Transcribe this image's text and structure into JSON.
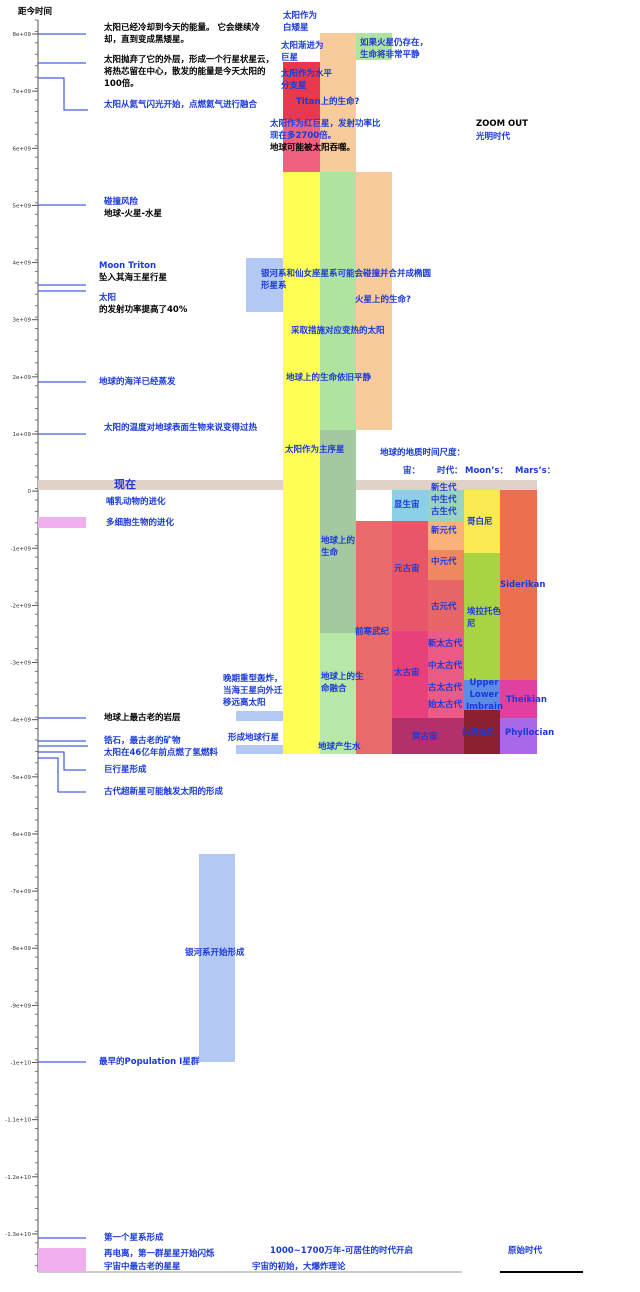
{
  "axis": {
    "title": "距今时间",
    "ticks": [
      "8e+09",
      "7e+09",
      "6e+09",
      "5e+09",
      "4e+09",
      "3e+09",
      "2e+09",
      "1e+09",
      "0",
      "-1e+09",
      "-2e+09",
      "-3e+09",
      "-4e+09",
      "-5e+09",
      "-6e+09",
      "-7e+09",
      "-8e+09",
      "-9e+09",
      "-1e+10",
      "-1.1e+10",
      "-1.2e+10",
      "-1.3e+10"
    ]
  },
  "future": {
    "sun_cooling": "太阳已经冷却到今天的能量。 它会继续冷却，直到变成黑矮星。",
    "nebula": "太阳抛弃了它的外层，形成一个行星状星云，将热芯留在中心，散发的能量是今天太阳的100倍。",
    "helium": "太阳从氦气闪光开始，点燃氦气进行融合",
    "collision_title": "碰撞风险",
    "collision_bodies": "地球-火星-水星",
    "triton_title": "Moon Triton",
    "triton_text": "坠入其海王星行星",
    "sun_title": "太阳",
    "sun_text": "的发射功率提高了40%",
    "oceans": "地球的海洋已经蒸发",
    "too_hot": "太阳的温度对地球表面生物来说变得过热"
  },
  "past": {
    "now": "现在",
    "mammals": "哺乳动物的进化",
    "multicellular": "多细胞生物的进化",
    "oldest_rock": "地球上最古老的岩层",
    "zircon": "锆石，最古老的矿物",
    "hydrogen": "太阳在46亿年前点燃了氢燃料",
    "giants": "巨行星形成",
    "supernova": "古代超新星可能触发太阳的形成",
    "galaxy_forms": "银河系开始形成",
    "population": "最早的Population I星群",
    "first_galaxy": "第一个星系形成",
    "reionization": "再电离，第一群星星开始闪烁",
    "oldest_stars": "宇宙中最古老的星星",
    "habitable": "1000~1700万年-可居住的时代开启",
    "big_bang": "宇宙的初始，大爆炸理论",
    "primordial": "原始时代"
  },
  "center": {
    "white_dwarf": "太阳作为白矮星",
    "giant": "太阳渐进为巨星",
    "horizontal": "太阳作为水平分支星",
    "titan": "Titan上的生命?",
    "red_giant": "太阳作为红巨星，发射功率比现在多2700倍。",
    "engulfed": "地球可能被太阳吞噬。",
    "mars_calm": "如果火星仍存在，生命将非常平静",
    "zoom": "ZOOM OUT",
    "bright_era": "光明时代",
    "andromeda": "银河系和仙女座星系可能会碰撞并合并成椭圆形星系",
    "mars_life": "火星上的生命?",
    "measures": "采取措施对应变热的太阳",
    "life_calm": "地球上的生命依旧平静",
    "main_sequence": "太阳作为主序星",
    "life": "地球上的生命",
    "precambrian": "前寒武纪",
    "life_merge": "地球上的生命融合",
    "water": "地球产生水",
    "bombardment": "晚期重型轰炸，当海王星向外迁移远离太阳",
    "earth_forms": "形成地球行星"
  },
  "geology": {
    "title": "地球的地质时间尺度：",
    "eon_head": "宙：",
    "era_head": "时代：",
    "moon_head": "Moon’s：",
    "mars_head": "Mars’s：",
    "eons": [
      "显生宙",
      "元古宙",
      "太古宙",
      "冥古宙"
    ],
    "eras": [
      "新生代",
      "中生代",
      "古生代",
      "新元代",
      "中元代",
      "古元代",
      "新太古代",
      "中太古代",
      "古太古代",
      "始太古代"
    ],
    "moon": [
      "哥白尼",
      "埃拉托色尼",
      "Upper Lower Imbrain",
      "前酒海纪"
    ],
    "mars": [
      "Siderikan",
      "Theikian",
      "Phyllocian"
    ]
  }
}
